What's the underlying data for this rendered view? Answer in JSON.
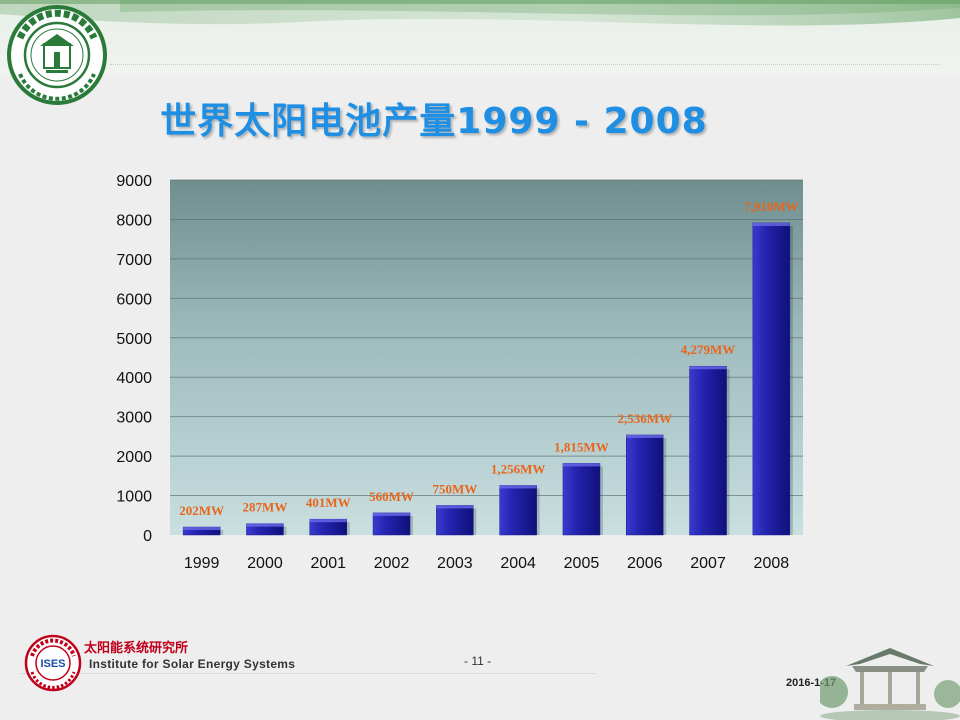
{
  "slide": {
    "title": "世界太阳电池产量1999 - 2008",
    "footer_cn": "太阳能系统研究所",
    "footer_en": "Institute for Solar Energy Systems",
    "footer_seal_text": "ISES",
    "page_number": "- 11 -",
    "date": "2016-1-17"
  },
  "colors": {
    "title": "#1f8fe3",
    "bar": "#1c1c9a",
    "bar_label": "#e8651b",
    "seal_green": "#2a7a3a",
    "footer_red": "#c0001a"
  },
  "chart_data": {
    "type": "bar",
    "categories": [
      "1999",
      "2000",
      "2001",
      "2002",
      "2003",
      "2004",
      "2005",
      "2006",
      "2007",
      "2008"
    ],
    "values": [
      202,
      287,
      401,
      560,
      750,
      1256,
      1815,
      2536,
      4279,
      7910
    ],
    "data_labels": [
      "202MW",
      "287MW",
      "401MW",
      "560MW",
      "750MW",
      "1,256MW",
      "1,815MW",
      "2,536MW",
      "4,279MW",
      "7,910MW"
    ],
    "y_ticks": [
      "0",
      "1000",
      "2000",
      "3000",
      "4000",
      "5000",
      "6000",
      "7000",
      "8000",
      "9000"
    ],
    "ylim": [
      0,
      9000
    ],
    "title": "世界太阳电池产量1999 - 2008",
    "xlabel": "",
    "ylabel": "",
    "grid": true,
    "legend": "none"
  }
}
